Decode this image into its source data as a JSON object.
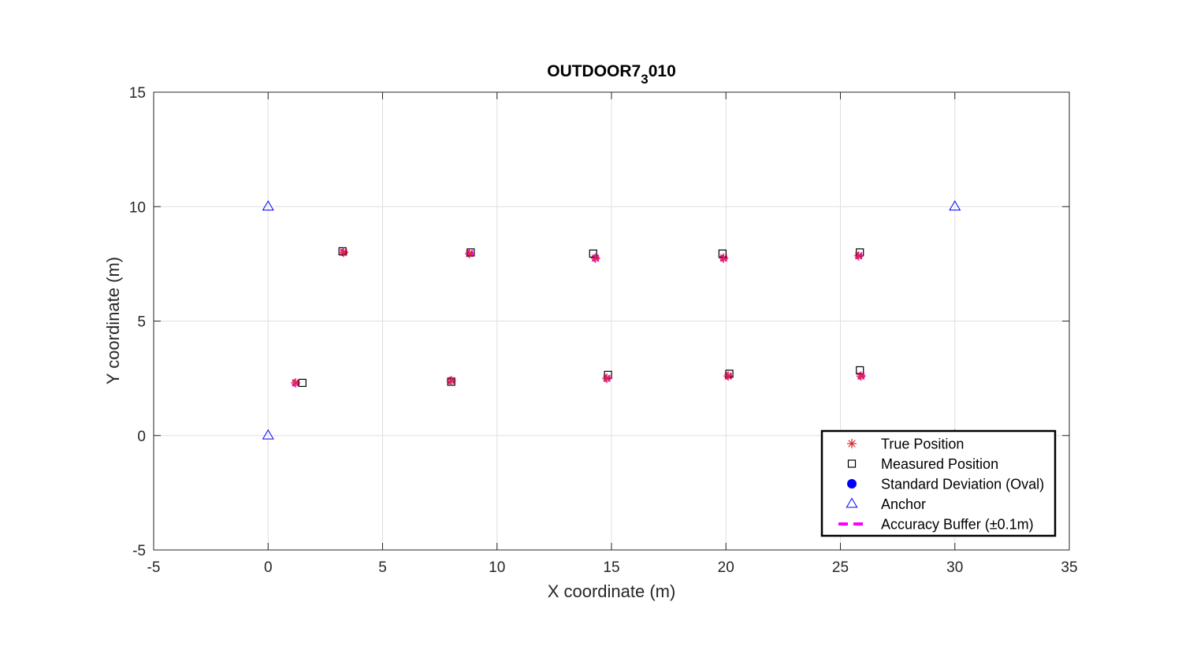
{
  "chart_data": {
    "type": "scatter",
    "title": {
      "main": "OUTDOOR7",
      "sub": "3",
      "tail": "010"
    },
    "xlabel": "X coordinate (m)",
    "ylabel": "Y coordinate (m)",
    "xlim": [
      -5,
      35
    ],
    "ylim": [
      -5,
      15
    ],
    "xticks": [
      -5,
      0,
      5,
      10,
      15,
      20,
      25,
      30,
      35
    ],
    "yticks": [
      -5,
      0,
      5,
      10,
      15
    ],
    "grid": true,
    "legend_position": "bottom-right",
    "series": [
      {
        "name": "True Position",
        "marker": "asterisk",
        "color": "#d62728",
        "points": [
          [
            1.2,
            2.3
          ],
          [
            8.0,
            2.4
          ],
          [
            14.8,
            2.5
          ],
          [
            20.1,
            2.6
          ],
          [
            25.9,
            2.6
          ],
          [
            3.3,
            8.0
          ],
          [
            8.8,
            7.95
          ],
          [
            14.3,
            7.75
          ],
          [
            19.9,
            7.75
          ],
          [
            25.8,
            7.85
          ]
        ]
      },
      {
        "name": "Measured Position",
        "marker": "square",
        "color": "#000000",
        "points": [
          [
            1.5,
            2.3
          ],
          [
            8.0,
            2.35
          ],
          [
            14.85,
            2.65
          ],
          [
            20.15,
            2.7
          ],
          [
            25.85,
            2.85
          ],
          [
            3.25,
            8.05
          ],
          [
            8.85,
            8.0
          ],
          [
            14.2,
            7.95
          ],
          [
            19.85,
            7.95
          ],
          [
            25.85,
            8.0
          ]
        ]
      },
      {
        "name": "Standard Deviation (Oval)",
        "marker": "filled-circle",
        "color": "#0000ff",
        "points": []
      },
      {
        "name": "Anchor",
        "marker": "triangle",
        "color": "#0000ff",
        "points": [
          [
            0,
            10
          ],
          [
            0,
            0
          ],
          [
            30,
            10
          ],
          [
            30,
            0
          ]
        ]
      },
      {
        "name": "Accuracy Buffer (±0.1m)",
        "marker": "dashed-line",
        "color": "#ff00ff",
        "radius": 0.1,
        "points": [
          [
            1.2,
            2.3
          ],
          [
            8.0,
            2.4
          ],
          [
            14.8,
            2.5
          ],
          [
            20.1,
            2.6
          ],
          [
            25.9,
            2.6
          ],
          [
            3.3,
            8.0
          ],
          [
            8.8,
            7.95
          ],
          [
            14.3,
            7.75
          ],
          [
            19.9,
            7.75
          ],
          [
            25.8,
            7.85
          ]
        ]
      }
    ]
  }
}
